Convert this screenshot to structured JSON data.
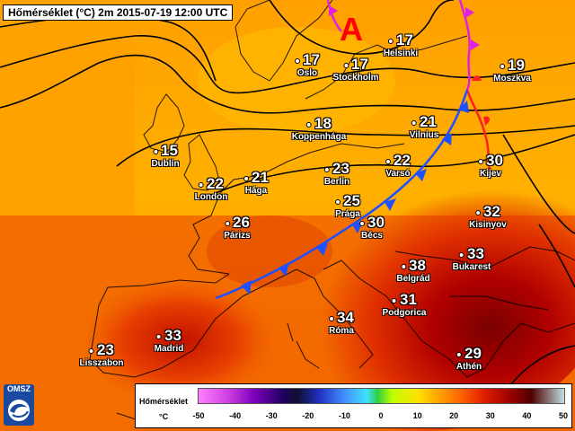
{
  "title": "Hőmérséklet (°C) 2m 2015-07-19 12:00 UTC",
  "high_label": "A",
  "cities": [
    {
      "name": "Helsinki",
      "temp": "17"
    },
    {
      "name": "Oslo",
      "temp": "17"
    },
    {
      "name": "Stockholm",
      "temp": "17"
    },
    {
      "name": "Moszkva",
      "temp": "19"
    },
    {
      "name": "Koppenhága",
      "temp": "18"
    },
    {
      "name": "Vilnius",
      "temp": "21"
    },
    {
      "name": "Dublin",
      "temp": "15"
    },
    {
      "name": "London",
      "temp": "22"
    },
    {
      "name": "Hága",
      "temp": "21"
    },
    {
      "name": "Berlin",
      "temp": "23"
    },
    {
      "name": "Varsó",
      "temp": "22"
    },
    {
      "name": "Kijev",
      "temp": "30"
    },
    {
      "name": "Prága",
      "temp": "25"
    },
    {
      "name": "Párizs",
      "temp": "26"
    },
    {
      "name": "Bécs",
      "temp": "30"
    },
    {
      "name": "Kisinyov",
      "temp": "32"
    },
    {
      "name": "Bukarest",
      "temp": "33"
    },
    {
      "name": "Belgrád",
      "temp": "38"
    },
    {
      "name": "Podgorica",
      "temp": "31"
    },
    {
      "name": "Róma",
      "temp": "34"
    },
    {
      "name": "Madrid",
      "temp": "33"
    },
    {
      "name": "Lisszabon",
      "temp": "23"
    },
    {
      "name": "Athén",
      "temp": "29"
    }
  ],
  "legend": {
    "title": "Hőmérséklet",
    "unit": "°C",
    "ticks": [
      "-50",
      "-40",
      "-30",
      "-20",
      "-10",
      "0",
      "10",
      "20",
      "30",
      "40",
      "50"
    ]
  },
  "logo_text": "OMSZ",
  "colors": {
    "cold_front": "#1e50ff",
    "warm_front": "#ff2020",
    "occluded_front": "#e020e0",
    "high": "#ff0000"
  }
}
